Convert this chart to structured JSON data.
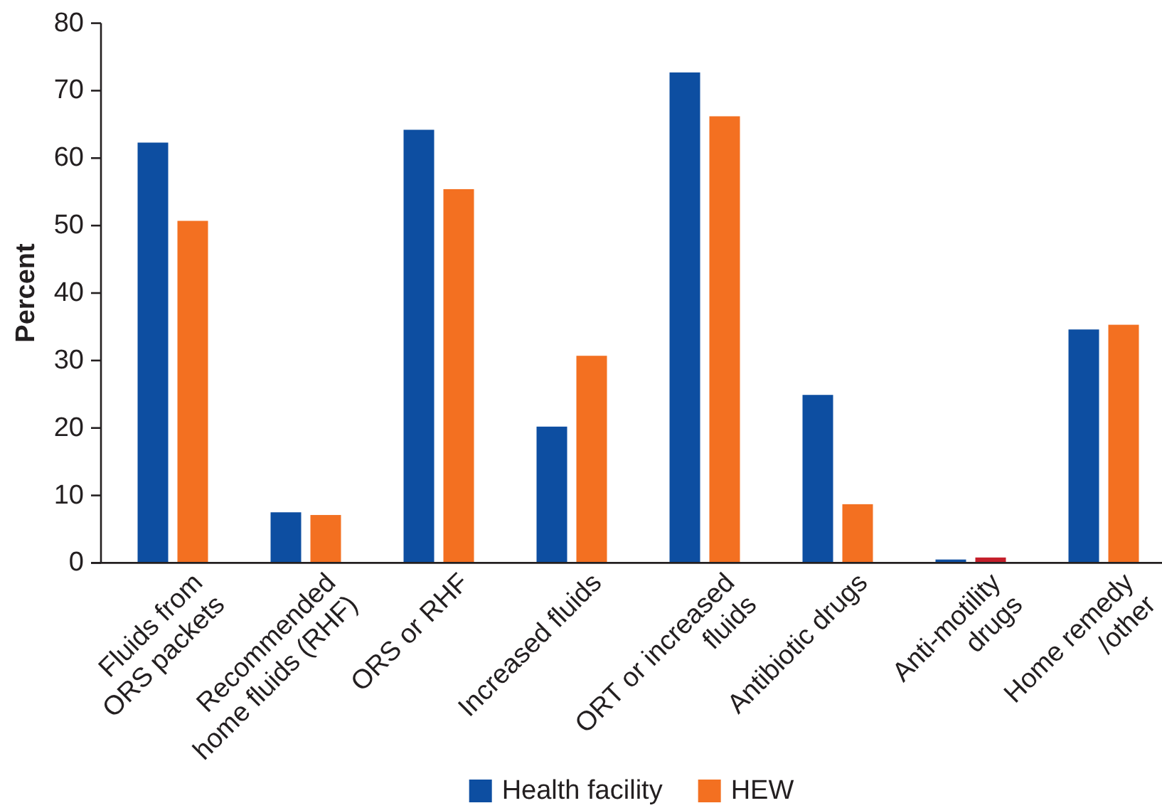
{
  "chart_data": {
    "type": "bar",
    "ylabel": "Percent",
    "categories": [
      "Fluids from\nORS packets",
      "Recommended\nhome fluids (RHF)",
      "ORS or RHF",
      "Increased fluids",
      "ORT or increased\nfluids",
      "Antibiotic drugs",
      "Anti-motility\ndrugs",
      "Home remedy\n/other"
    ],
    "series": [
      {
        "name": "Health facility",
        "color": "#0d4ea1",
        "values": [
          62.3,
          7.5,
          64.2,
          20.2,
          72.7,
          24.9,
          0.5,
          34.6
        ]
      },
      {
        "name": "HEW",
        "color": "#f37021",
        "colors": [
          "#f37021",
          "#f37021",
          "#f37021",
          "#f37021",
          "#f37021",
          "#f37021",
          "#c41e2a",
          "#f37021"
        ],
        "values": [
          50.7,
          7.1,
          55.4,
          30.7,
          66.2,
          8.7,
          0.8,
          35.3
        ]
      }
    ],
    "ylim": [
      0,
      80
    ],
    "yticks": [
      0,
      10,
      20,
      30,
      40,
      50,
      60,
      70,
      80
    ],
    "legend": "bottom"
  }
}
